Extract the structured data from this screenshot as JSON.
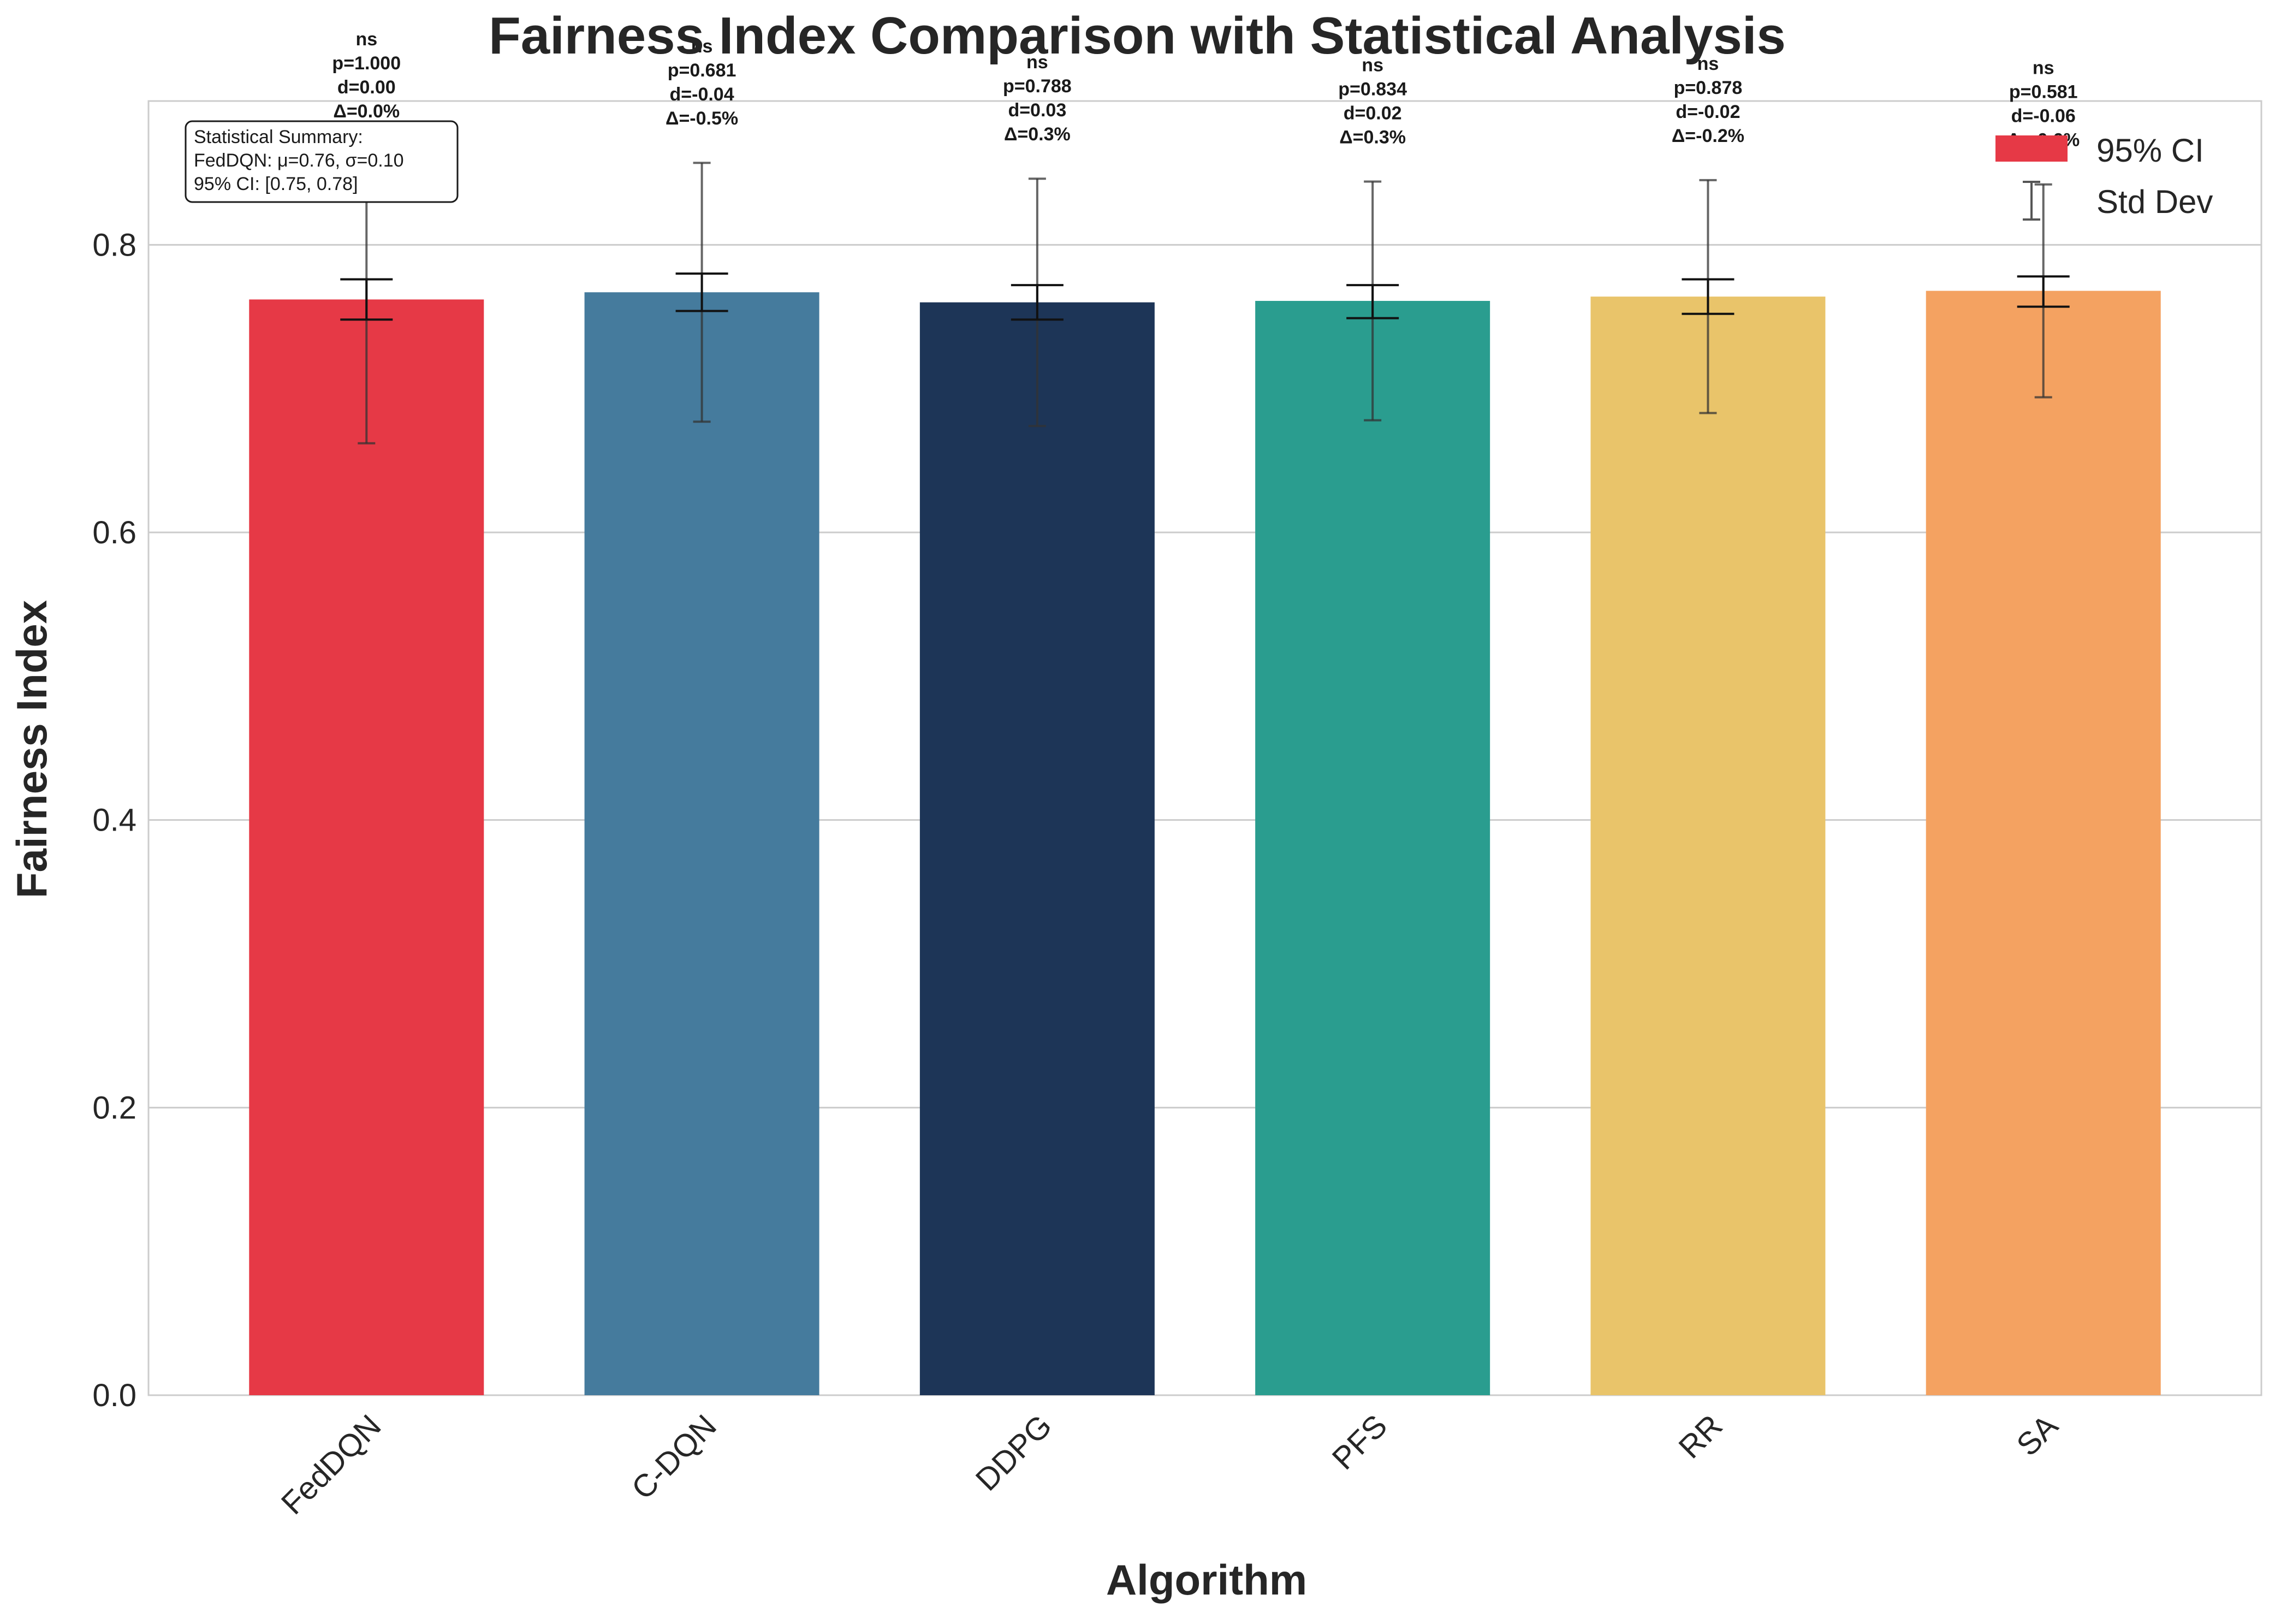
{
  "chart_data": {
    "type": "bar",
    "title": "Fairness Index Comparison with Statistical Analysis",
    "xlabel": "Algorithm",
    "ylabel": "Fairness Index",
    "ylim": [
      0,
      0.9
    ],
    "yticks": [
      "0.0",
      "0.2",
      "0.4",
      "0.6",
      "0.8"
    ],
    "grid": true,
    "legend_position": "top-right",
    "legend": [
      {
        "label": "95% CI",
        "kind": "patch"
      },
      {
        "label": "Std Dev",
        "kind": "errorbar"
      }
    ],
    "categories": [
      "FedDQN",
      "C-DQN",
      "DDPG",
      "PFS",
      "RR",
      "SA"
    ],
    "colors": [
      "#e63946",
      "#457b9d",
      "#1d3557",
      "#2a9d8f",
      "#e9c46a",
      "#f4a261"
    ],
    "values": [
      0.762,
      0.767,
      0.76,
      0.761,
      0.764,
      0.768
    ],
    "std_dev": [
      0.1,
      0.09,
      0.086,
      0.083,
      0.081,
      0.074
    ],
    "ci95": [
      [
        0.748,
        0.776
      ],
      [
        0.754,
        0.78
      ],
      [
        0.748,
        0.772
      ],
      [
        0.749,
        0.772
      ],
      [
        0.752,
        0.776
      ],
      [
        0.757,
        0.778
      ]
    ],
    "annotations": [
      {
        "sig": "ns",
        "p": "p=1.000",
        "d": "d=0.00",
        "delta": "Δ=0.0%"
      },
      {
        "sig": "ns",
        "p": "p=0.681",
        "d": "d=-0.04",
        "delta": "Δ=-0.5%"
      },
      {
        "sig": "ns",
        "p": "p=0.788",
        "d": "d=0.03",
        "delta": "Δ=0.3%"
      },
      {
        "sig": "ns",
        "p": "p=0.834",
        "d": "d=0.02",
        "delta": "Δ=0.3%"
      },
      {
        "sig": "ns",
        "p": "p=0.878",
        "d": "d=-0.02",
        "delta": "Δ=-0.2%"
      },
      {
        "sig": "ns",
        "p": "p=0.581",
        "d": "d=-0.06",
        "delta": "Δ=-0.6%"
      }
    ],
    "summary": {
      "heading": "Statistical Summary:",
      "line1": "FedDQN: μ=0.76, σ=0.10",
      "line2": "95% CI: [0.75, 0.78]"
    }
  }
}
